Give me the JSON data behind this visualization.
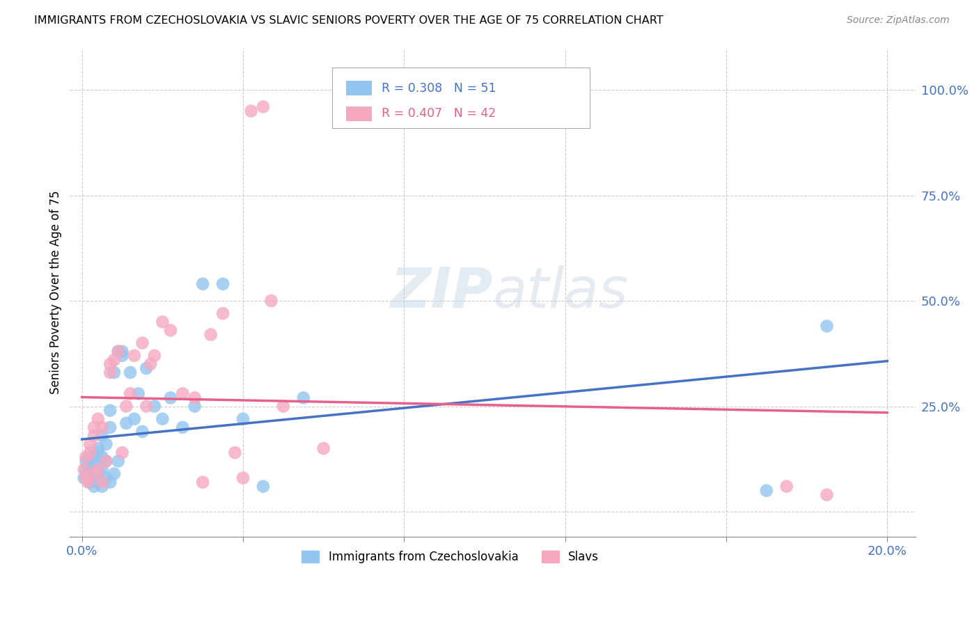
{
  "title": "IMMIGRANTS FROM CZECHOSLOVAKIA VS SLAVIC SENIORS POVERTY OVER THE AGE OF 75 CORRELATION CHART",
  "source": "Source: ZipAtlas.com",
  "ylabel": "Seniors Poverty Over the Age of 75",
  "x_ticks": [
    0.0,
    0.04,
    0.08,
    0.12,
    0.16,
    0.2
  ],
  "x_tick_labels": [
    "0.0%",
    "",
    "",
    "",
    "",
    "20.0%"
  ],
  "y_ticks": [
    0.0,
    0.25,
    0.5,
    0.75,
    1.0
  ],
  "y_tick_labels": [
    "",
    "25.0%",
    "50.0%",
    "75.0%",
    "100.0%"
  ],
  "blue_R": 0.308,
  "blue_N": 51,
  "pink_R": 0.407,
  "pink_N": 42,
  "blue_color": "#92C5F0",
  "pink_color": "#F5A8C0",
  "blue_line_color": "#4472C4",
  "pink_line_color": "#E8608A",
  "legend_label_blue": "Immigrants from Czechoslovakia",
  "legend_label_pink": "Slavs",
  "watermark": "ZIPatlas",
  "blue_x": [
    0.0005,
    0.001,
    0.001,
    0.0015,
    0.002,
    0.002,
    0.002,
    0.0025,
    0.003,
    0.003,
    0.003,
    0.003,
    0.004,
    0.004,
    0.004,
    0.004,
    0.004,
    0.005,
    0.005,
    0.005,
    0.005,
    0.006,
    0.006,
    0.006,
    0.007,
    0.007,
    0.007,
    0.008,
    0.008,
    0.009,
    0.009,
    0.01,
    0.01,
    0.011,
    0.012,
    0.013,
    0.014,
    0.015,
    0.016,
    0.018,
    0.02,
    0.022,
    0.025,
    0.028,
    0.03,
    0.035,
    0.04,
    0.045,
    0.055,
    0.17,
    0.185
  ],
  "blue_y": [
    0.08,
    0.12,
    0.1,
    0.09,
    0.07,
    0.11,
    0.13,
    0.08,
    0.06,
    0.09,
    0.11,
    0.13,
    0.07,
    0.1,
    0.14,
    0.08,
    0.15,
    0.06,
    0.1,
    0.13,
    0.18,
    0.08,
    0.12,
    0.16,
    0.07,
    0.2,
    0.24,
    0.09,
    0.33,
    0.12,
    0.38,
    0.37,
    0.38,
    0.21,
    0.33,
    0.22,
    0.28,
    0.19,
    0.34,
    0.25,
    0.22,
    0.27,
    0.2,
    0.25,
    0.54,
    0.54,
    0.22,
    0.06,
    0.27,
    0.05,
    0.44
  ],
  "pink_x": [
    0.0005,
    0.001,
    0.001,
    0.0015,
    0.002,
    0.002,
    0.003,
    0.003,
    0.003,
    0.004,
    0.004,
    0.005,
    0.005,
    0.006,
    0.007,
    0.007,
    0.008,
    0.009,
    0.01,
    0.011,
    0.012,
    0.013,
    0.015,
    0.016,
    0.017,
    0.018,
    0.02,
    0.022,
    0.025,
    0.028,
    0.03,
    0.032,
    0.035,
    0.038,
    0.04,
    0.042,
    0.045,
    0.047,
    0.05,
    0.06,
    0.175,
    0.185
  ],
  "pink_y": [
    0.1,
    0.08,
    0.13,
    0.07,
    0.14,
    0.16,
    0.09,
    0.18,
    0.2,
    0.1,
    0.22,
    0.07,
    0.2,
    0.12,
    0.35,
    0.33,
    0.36,
    0.38,
    0.14,
    0.25,
    0.28,
    0.37,
    0.4,
    0.25,
    0.35,
    0.37,
    0.45,
    0.43,
    0.28,
    0.27,
    0.07,
    0.42,
    0.47,
    0.14,
    0.08,
    0.95,
    0.96,
    0.5,
    0.25,
    0.15,
    0.06,
    0.04
  ],
  "xlim": [
    -0.003,
    0.207
  ],
  "ylim": [
    -0.06,
    1.1
  ]
}
